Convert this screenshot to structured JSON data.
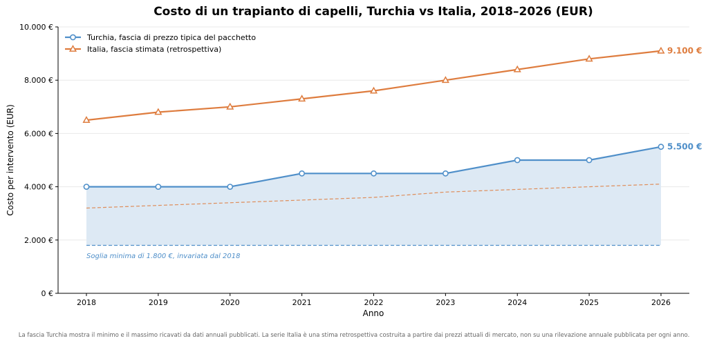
{
  "colors": {
    "turchia": "#4f8fc9",
    "italia": "#de7c3e",
    "band_fill": "#dde9f4",
    "grid": "#e8e8e8"
  },
  "chart_data": {
    "type": "line",
    "title": "Costo di un trapianto di capelli, Turchia vs Italia, 2018–2026 (EUR)",
    "xlabel": "Anno",
    "ylabel": "Costo per intervento (EUR)",
    "x": [
      2018,
      2019,
      2020,
      2021,
      2022,
      2023,
      2024,
      2025,
      2026
    ],
    "x_tick_labels": [
      "2018",
      "2019",
      "2020",
      "2021",
      "2022",
      "2023",
      "2024",
      "2025",
      "2026"
    ],
    "ylim": [
      0,
      10000
    ],
    "y_ticks": [
      0,
      2000,
      4000,
      6000,
      8000,
      10000
    ],
    "y_tick_labels": [
      "0 €",
      "2.000 €",
      "4.000 €",
      "6.000 €",
      "8.000 €",
      "10.000 €"
    ],
    "grid": "horizontal",
    "legend_position": "top-left",
    "series": [
      {
        "name": "Turchia, fascia di prezzo tipica del pacchetto",
        "values": [
          4000,
          4000,
          4000,
          4500,
          4500,
          4500,
          5000,
          5000,
          5500
        ],
        "marker": "circle",
        "end_label": "5.500 €"
      },
      {
        "name": "Italia, fascia stimata (retrospettiva)",
        "values": [
          6500,
          6800,
          7000,
          7300,
          7600,
          8000,
          8400,
          8800,
          9100
        ],
        "marker": "triangle",
        "end_label": "9.100 €"
      }
    ],
    "turchia_band_min": [
      1800,
      1800,
      1800,
      1800,
      1800,
      1800,
      1800,
      1800,
      1800
    ],
    "italia_lower": [
      3200,
      3300,
      3400,
      3500,
      3600,
      3800,
      3900,
      4000,
      4100
    ],
    "annotation": "Soglia minima di 1.800 €, invariata dal 2018",
    "footnote": "La fascia Turchia mostra il minimo e il massimo ricavati da dati annuali pubblicati. La serie Italia è una stima retrospettiva costruita a partire dai prezzi attuali di mercato, non su una rilevazione annuale pubblicata per ogni anno."
  }
}
